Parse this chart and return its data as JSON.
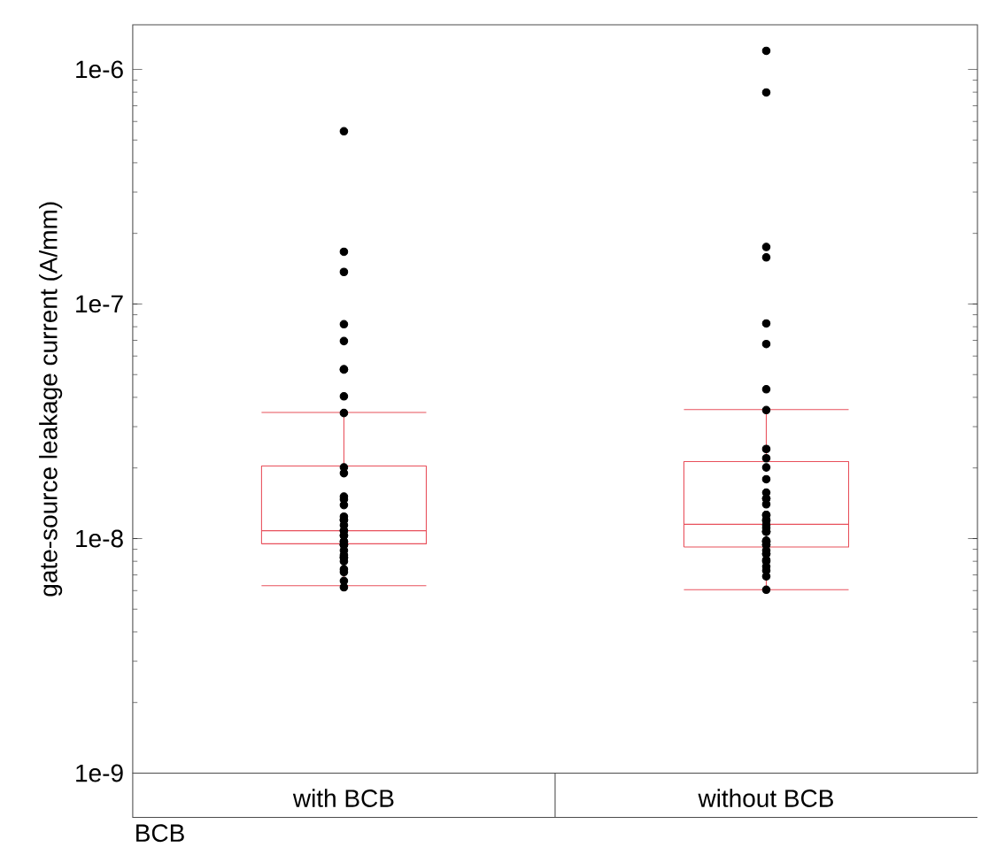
{
  "chart_data": {
    "type": "box",
    "categories": [
      "with BCB",
      "without BCB"
    ],
    "xlabel": "BCB",
    "ylabel": "gate-source leakage current (A/mm)",
    "log": "y",
    "ylim": [
      1e-09,
      1.55e-06
    ],
    "yticks": [
      {
        "value": 1e-09,
        "label": "1e-9"
      },
      {
        "value": 1e-08,
        "label": "1e-8"
      },
      {
        "value": 1e-07,
        "label": "1e-7"
      },
      {
        "value": 1e-06,
        "label": "1e-6"
      }
    ],
    "grid": false,
    "color": "#e8505b",
    "boxes": [
      {
        "low": 6.3e-09,
        "q1": 9.5e-09,
        "median": 1.08e-08,
        "q3": 2.04e-08,
        "high": 3.45e-08
      },
      {
        "low": 6.05e-09,
        "q1": 9.2e-09,
        "median": 1.15e-08,
        "q3": 2.13e-08,
        "high": 3.55e-08
      }
    ],
    "series": [
      {
        "type": "scatter",
        "color": "#000000",
        "x": [
          "with BCB",
          "with BCB",
          "with BCB",
          "with BCB",
          "with BCB",
          "with BCB",
          "with BCB",
          "with BCB",
          "with BCB",
          "with BCB",
          "with BCB",
          "with BCB",
          "with BCB",
          "with BCB",
          "with BCB",
          "with BCB",
          "with BCB",
          "with BCB",
          "with BCB",
          "with BCB",
          "with BCB",
          "with BCB",
          "with BCB",
          "with BCB",
          "with BCB",
          "with BCB",
          "with BCB",
          "with BCB",
          "with BCB",
          "with BCB",
          "with BCB",
          "with BCB",
          "with BCB",
          "with BCB",
          "with BCB",
          "with BCB",
          "without BCB",
          "without BCB",
          "without BCB",
          "without BCB",
          "without BCB",
          "without BCB",
          "without BCB",
          "without BCB",
          "without BCB",
          "without BCB",
          "without BCB",
          "without BCB",
          "without BCB",
          "without BCB",
          "without BCB",
          "without BCB",
          "without BCB",
          "without BCB",
          "without BCB",
          "without BCB",
          "without BCB",
          "without BCB",
          "without BCB",
          "without BCB",
          "without BCB",
          "without BCB",
          "without BCB",
          "without BCB",
          "without BCB",
          "without BCB",
          "without BCB",
          "without BCB",
          "without BCB",
          "without BCB",
          "without BCB",
          "without BCB",
          "without BCB",
          "without BCB",
          "without BCB"
        ],
        "values": [
          5.45e-07,
          1.67e-07,
          1.37e-07,
          8.2e-08,
          6.95e-08,
          5.26e-08,
          5.26e-08,
          4.04e-08,
          3.43e-08,
          2.01e-08,
          1.9e-08,
          1.51e-08,
          1.47e-08,
          1.39e-08,
          1.24e-08,
          1.2e-08,
          1.2e-08,
          1.14e-08,
          1.08e-08,
          1.08e-08,
          1.03e-08,
          1.03e-08,
          9.7e-09,
          9.7e-09,
          9.4e-09,
          9.4e-09,
          9.4e-09,
          8.9e-09,
          8.5e-09,
          8.3e-09,
          8.3e-09,
          8e-09,
          7.4e-09,
          7.2e-09,
          6.6e-09,
          6.2e-09,
          1.2e-06,
          7.98e-07,
          1.75e-07,
          1.58e-07,
          8.26e-08,
          6.75e-08,
          4.33e-08,
          3.53e-08,
          2.41e-08,
          2.2e-08,
          2.01e-08,
          1.79e-08,
          1.57e-08,
          1.48e-08,
          1.48e-08,
          1.4e-08,
          1.26e-08,
          1.26e-08,
          1.2e-08,
          1.19e-08,
          1.14e-08,
          1.11e-08,
          1.07e-08,
          1.07e-08,
          1.07e-08,
          9.8e-09,
          9.7e-09,
          9.7e-09,
          9.4e-09,
          9.4e-09,
          8.9e-09,
          8.6e-09,
          8.6e-09,
          8.1e-09,
          8e-09,
          7.6e-09,
          7.3e-09,
          6.9e-09,
          6.05e-09
        ]
      }
    ]
  }
}
